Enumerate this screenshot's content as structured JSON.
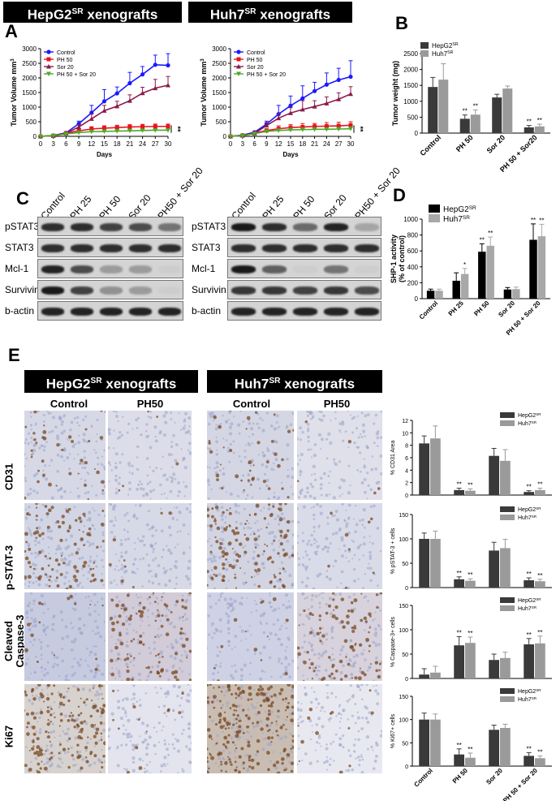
{
  "panels": {
    "A": "A",
    "B": "B",
    "C": "C",
    "D": "D",
    "E": "E"
  },
  "headers": {
    "hepg2_title": "HepG2",
    "huh7_title": "Huh7",
    "title_sup": "SR",
    "title_suffix": " xenografts"
  },
  "colors": {
    "control": "#1a1aff",
    "ph50": "#e8141e",
    "sor20": "#8b1a4a",
    "combo": "#50a82a",
    "hepg2_bar": "#3a3a3a",
    "huh7_bar": "#9a9a9a",
    "black_bar": "#000000",
    "gray_bar": "#a8a8a8"
  },
  "chart_data": [
    {
      "id": "A-HepG2",
      "type": "line",
      "title": "HepG2SR xenografts",
      "xlabel": "Days",
      "ylabel": "Tumor Volume mm3",
      "x": [
        0,
        3,
        6,
        9,
        12,
        15,
        18,
        21,
        24,
        27,
        30
      ],
      "xlim": [
        0,
        30
      ],
      "ylim": [
        0,
        3000
      ],
      "yticks": [
        0,
        500,
        1000,
        1500,
        2000,
        2500,
        3000
      ],
      "legend": "top-left",
      "significance": "**",
      "series": [
        {
          "name": "Control",
          "values": [
            0,
            30,
            120,
            430,
            810,
            1200,
            1470,
            1820,
            2120,
            2450,
            2430
          ],
          "err": [
            0,
            20,
            40,
            90,
            250,
            400,
            220,
            370,
            270,
            330,
            400
          ]
        },
        {
          "name": "PH 50",
          "values": [
            0,
            20,
            110,
            190,
            250,
            280,
            300,
            320,
            330,
            340,
            340
          ],
          "err": [
            0,
            10,
            20,
            50,
            80,
            80,
            80,
            80,
            80,
            80,
            80
          ]
        },
        {
          "name": "Sor 20",
          "values": [
            0,
            25,
            100,
            320,
            600,
            880,
            1030,
            1220,
            1480,
            1650,
            1750
          ],
          "err": [
            0,
            20,
            40,
            80,
            160,
            180,
            170,
            200,
            200,
            300,
            300
          ]
        },
        {
          "name": "PH 50 + Sor 20",
          "values": [
            0,
            20,
            80,
            130,
            160,
            170,
            180,
            190,
            200,
            210,
            210
          ],
          "err": [
            0,
            10,
            20,
            30,
            40,
            40,
            40,
            40,
            40,
            40,
            40
          ]
        }
      ]
    },
    {
      "id": "A-Huh7",
      "type": "line",
      "title": "Huh7SR xenografts",
      "xlabel": "Days",
      "ylabel": "Tumor Volume mm3",
      "x": [
        0,
        3,
        6,
        9,
        12,
        15,
        18,
        21,
        24,
        27,
        30
      ],
      "xlim": [
        0,
        30
      ],
      "ylim": [
        0,
        3000
      ],
      "yticks": [
        0,
        500,
        1000,
        1500,
        2000,
        2500,
        3000
      ],
      "legend": "top-left",
      "significance": "**",
      "series": [
        {
          "name": "Control",
          "values": [
            0,
            40,
            140,
            420,
            760,
            1050,
            1300,
            1550,
            1770,
            1930,
            2040
          ],
          "err": [
            0,
            20,
            40,
            100,
            300,
            330,
            430,
            300,
            400,
            400,
            550
          ]
        },
        {
          "name": "PH 50",
          "values": [
            0,
            30,
            110,
            200,
            260,
            300,
            320,
            340,
            350,
            360,
            380
          ],
          "err": [
            0,
            10,
            20,
            60,
            100,
            100,
            120,
            100,
            120,
            120,
            120
          ]
        },
        {
          "name": "Sor 20",
          "values": [
            0,
            30,
            100,
            370,
            620,
            800,
            920,
            1020,
            1130,
            1270,
            1450
          ],
          "err": [
            0,
            20,
            40,
            100,
            150,
            180,
            300,
            200,
            220,
            220,
            250
          ]
        },
        {
          "name": "PH 50 + Sor 20",
          "values": [
            0,
            20,
            90,
            170,
            200,
            220,
            230,
            240,
            240,
            250,
            260
          ],
          "err": [
            0,
            10,
            20,
            40,
            50,
            50,
            50,
            50,
            50,
            50,
            50
          ]
        }
      ]
    },
    {
      "id": "B",
      "type": "bar",
      "ylabel": "Tumor weight (mg)",
      "categories": [
        "Control",
        "PH 50",
        "Sor 20",
        "PH 50 + Sor20"
      ],
      "ylim": [
        0,
        2500
      ],
      "yticks": [
        0,
        500,
        1000,
        1500,
        2000,
        2500
      ],
      "legend": "top-left",
      "series": [
        {
          "name": "HepG2SR",
          "values": [
            1450,
            450,
            1120,
            180
          ],
          "err": [
            300,
            120,
            100,
            60
          ],
          "sig": [
            "",
            "**",
            "",
            "**"
          ]
        },
        {
          "name": "Huh7SR",
          "values": [
            1680,
            580,
            1400,
            210
          ],
          "err": [
            500,
            150,
            80,
            70
          ],
          "sig": [
            "",
            "**",
            "",
            "**"
          ]
        }
      ]
    },
    {
      "id": "D",
      "type": "bar",
      "ylabel": "SHP-1 activity (% of control)",
      "categories": [
        "Control",
        "PH 25",
        "PH 50",
        "Sor 20",
        "PH 50 + Sor 20"
      ],
      "ylim": [
        0,
        1000
      ],
      "yticks": [
        0,
        200,
        400,
        600,
        800,
        1000
      ],
      "legend": "top-left",
      "series": [
        {
          "name": "HepG2SR",
          "values": [
            100,
            225,
            590,
            115,
            740
          ],
          "err": [
            20,
            100,
            100,
            25,
            200
          ],
          "sig": [
            "",
            "",
            "**",
            "",
            "**"
          ]
        },
        {
          "name": "Huh7SR",
          "values": [
            100,
            310,
            665,
            120,
            785
          ],
          "err": [
            20,
            70,
            110,
            25,
            150
          ],
          "sig": [
            "",
            "*",
            "**",
            "",
            "**"
          ]
        }
      ]
    },
    {
      "id": "E-CD31",
      "type": "bar",
      "ylabel": "% CD31 Area",
      "categories": [
        "Control",
        "PH 50",
        "Sor 20",
        "PH 50 + Sor 20"
      ],
      "ylim": [
        0,
        12
      ],
      "yticks": [
        0,
        2,
        4,
        6,
        8,
        10,
        12
      ],
      "legend": "top-right",
      "series": [
        {
          "name": "HepG2SR",
          "values": [
            8.3,
            0.8,
            6.3,
            0.5
          ],
          "err": [
            1.2,
            0.3,
            1.2,
            0.2
          ],
          "sig": [
            "",
            "**",
            "",
            "**"
          ]
        },
        {
          "name": "Huh7SR",
          "values": [
            9.1,
            0.7,
            5.5,
            0.8
          ],
          "err": [
            2.0,
            0.3,
            1.8,
            0.3
          ],
          "sig": [
            "",
            "**",
            "",
            "**"
          ]
        }
      ]
    },
    {
      "id": "E-pSTAT3",
      "type": "bar",
      "ylabel": "% pSTAT-3 + cells",
      "categories": [
        "Control",
        "PH 50",
        "Sor 20",
        "PH 50 + Sor 20"
      ],
      "ylim": [
        0,
        150
      ],
      "yticks": [
        0,
        50,
        100,
        150
      ],
      "legend": "top-right",
      "series": [
        {
          "name": "HepG2SR",
          "values": [
            100,
            17,
            76,
            15
          ],
          "err": [
            12,
            5,
            17,
            5
          ],
          "sig": [
            "",
            "**",
            "",
            "**"
          ]
        },
        {
          "name": "Huh7SR",
          "values": [
            100,
            14,
            81,
            13
          ],
          "err": [
            16,
            4,
            18,
            4
          ],
          "sig": [
            "",
            "**",
            "",
            "**"
          ]
        }
      ]
    },
    {
      "id": "E-Caspase3",
      "type": "bar",
      "ylabel": "% Caspase-3+ cells",
      "categories": [
        "Control",
        "PH 50",
        "Sor 20",
        "PH 50 + Sor 20"
      ],
      "ylim": [
        0,
        150
      ],
      "yticks": [
        0,
        50,
        100,
        150
      ],
      "legend": "top-right",
      "series": [
        {
          "name": "HepG2SR",
          "values": [
            8,
            68,
            38,
            70
          ],
          "err": [
            12,
            18,
            12,
            12
          ],
          "sig": [
            "",
            "**",
            "",
            "**"
          ]
        },
        {
          "name": "Huh7SR",
          "values": [
            12,
            73,
            42,
            72
          ],
          "err": [
            13,
            12,
            12,
            15
          ],
          "sig": [
            "",
            "**",
            "",
            "**"
          ]
        }
      ]
    },
    {
      "id": "E-Ki67",
      "type": "bar",
      "ylabel": "% Ki67+ cells",
      "categories": [
        "Control",
        "PH 50",
        "Sor 20",
        "PH 50 + Sor 20"
      ],
      "ylim": [
        0,
        150
      ],
      "yticks": [
        0,
        50,
        100,
        150
      ],
      "legend": "top-right",
      "series": [
        {
          "name": "HepG2SR",
          "values": [
            100,
            25,
            78,
            22
          ],
          "err": [
            14,
            12,
            10,
            7
          ],
          "sig": [
            "",
            "**",
            "",
            "**"
          ]
        },
        {
          "name": "Huh7SR",
          "values": [
            100,
            18,
            82,
            17
          ],
          "err": [
            12,
            10,
            8,
            5
          ],
          "sig": [
            "",
            "**",
            "",
            "**"
          ]
        }
      ]
    }
  ],
  "blots": {
    "lanes": [
      "Control",
      "PH 25",
      "PH 50",
      "Sor 20",
      "PH50 + Sor 20"
    ],
    "left_rows": [
      "pSTAT3",
      "STAT3",
      "Mcl-1",
      "Survivin",
      "b-actin"
    ],
    "right_rows": [
      "pSTAT3",
      "STAT3",
      "Mcl-1",
      "Survivin",
      "b-actin"
    ],
    "left_intensity": [
      [
        0.85,
        0.85,
        0.75,
        0.7,
        0.5
      ],
      [
        0.85,
        0.85,
        0.85,
        0.85,
        0.85
      ],
      [
        0.9,
        0.7,
        0.3,
        0.3,
        0.05
      ],
      [
        0.95,
        0.75,
        0.35,
        0.3,
        0.05
      ],
      [
        0.9,
        0.9,
        0.9,
        0.9,
        0.9
      ]
    ],
    "right_intensity": [
      [
        0.95,
        0.85,
        0.55,
        0.9,
        0.25
      ],
      [
        0.85,
        0.85,
        0.85,
        0.85,
        0.85
      ],
      [
        0.95,
        0.6,
        0.05,
        0.5,
        0.05
      ],
      [
        0.8,
        0.8,
        0.75,
        0.8,
        0.7
      ],
      [
        0.9,
        0.9,
        0.9,
        0.9,
        0.9
      ]
    ]
  },
  "ihc": {
    "col_headers": [
      "Control",
      "PH50",
      "Control",
      "PH50"
    ],
    "row_labels": [
      "CD31",
      "p-STAT-3",
      "Cleaved Caspase-3",
      "Ki67"
    ]
  }
}
